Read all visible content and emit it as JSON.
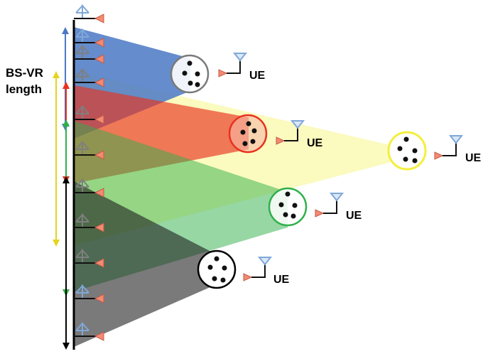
{
  "diagram": {
    "side_label_line1": "BS-VR",
    "side_label_line2": "length",
    "ue_label": "UE"
  },
  "colors": {
    "blue": "#4a78c4",
    "red": "#e8321e",
    "green": "#2fb04a",
    "yellow": "#f3ef3c",
    "black": "#000000",
    "antenna_blue": "#7fa8d8",
    "antenna_pink": "#f28a74",
    "antenna_gray": "#7f7f7f"
  },
  "users": [
    {
      "name": "ue-blue",
      "ring": "blue"
    },
    {
      "name": "ue-red",
      "ring": "red"
    },
    {
      "name": "ue-yellow",
      "ring": "yellow"
    },
    {
      "name": "ue-green",
      "ring": "green"
    },
    {
      "name": "ue-black",
      "ring": "black"
    }
  ]
}
